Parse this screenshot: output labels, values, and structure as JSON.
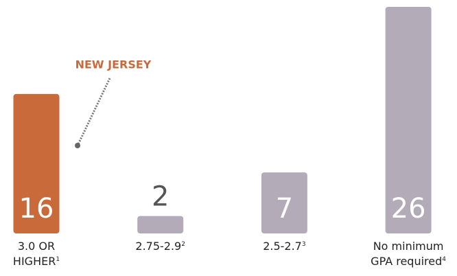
{
  "chart_data": {
    "type": "bar",
    "categories": [
      "3.0 OR HIGHER",
      "2.75-2.9",
      "2.5-2.7",
      "No minimum GPA required"
    ],
    "footnotes": [
      "1",
      "2",
      "3",
      "4"
    ],
    "values": [
      16,
      2,
      7,
      26
    ],
    "colors": [
      "#c96a3b",
      "#b3acb8",
      "#b3acb8",
      "#b3acb8"
    ],
    "ylim": [
      0,
      26
    ],
    "annotation": {
      "text": "NEW JERSEY",
      "color": "#c96a3b"
    }
  }
}
